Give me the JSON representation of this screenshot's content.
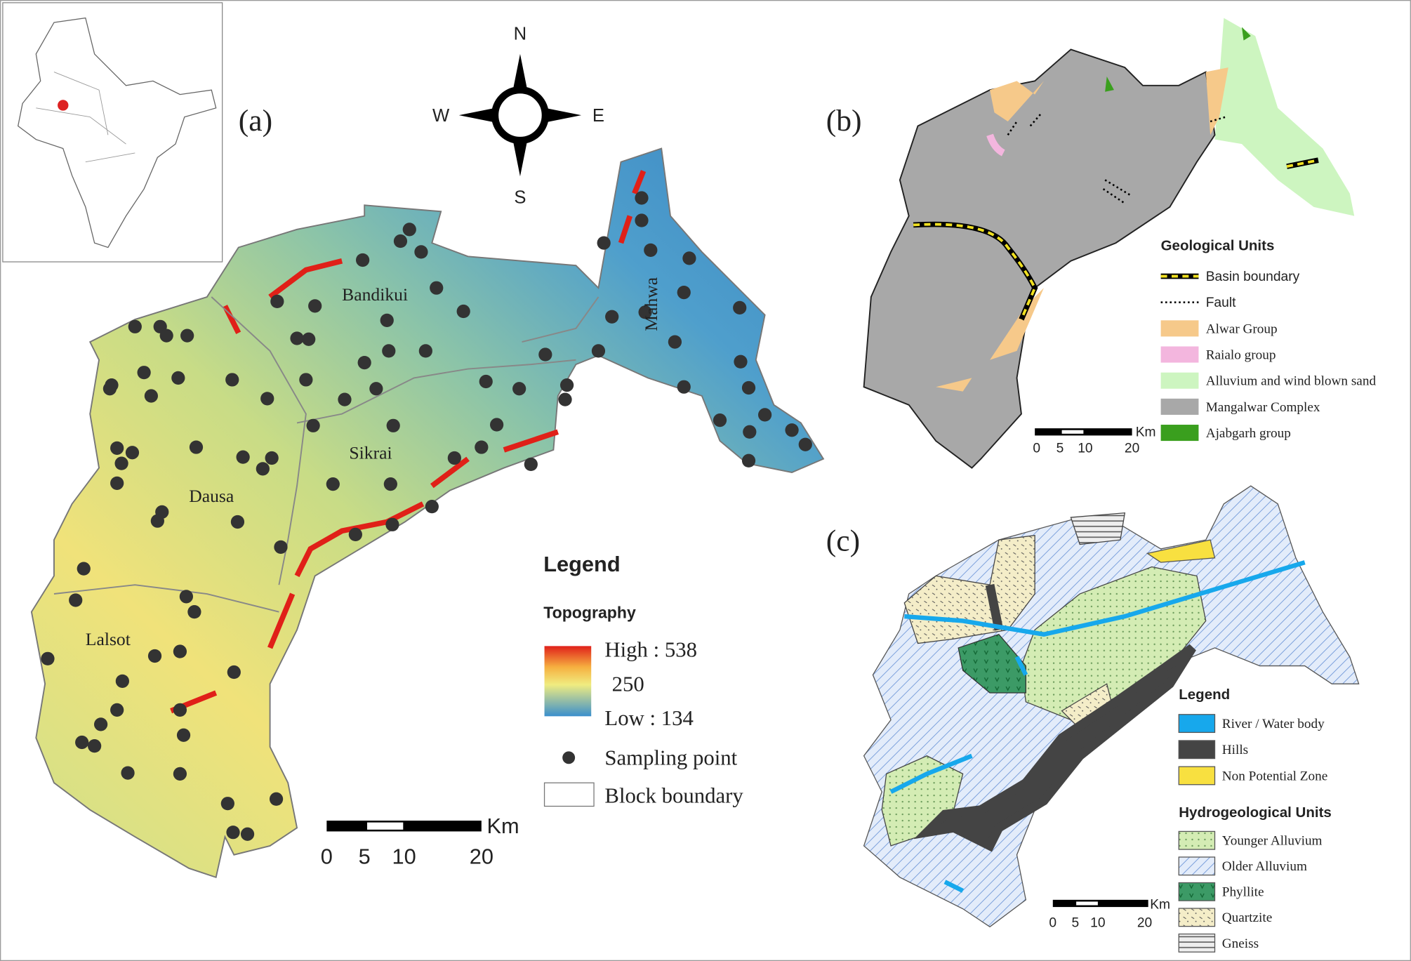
{
  "panel_a": {
    "label": "(a)",
    "compass": {
      "north": "N",
      "south": "S",
      "east": "E",
      "west": "W"
    },
    "blocks": [
      "Bandikui",
      "Mahwa",
      "Sikrai",
      "Dausa",
      "Lalsot"
    ],
    "legend": {
      "title": "Legend",
      "topography": "Topography",
      "high": "High : 538",
      "mid": "250",
      "low": "Low : 134",
      "sampling": "Sampling point",
      "boundary": "Block boundary"
    },
    "scale": {
      "unit": "Km",
      "ticks": [
        "0",
        "5",
        "10",
        "20"
      ]
    }
  },
  "panel_b": {
    "label": "(b)",
    "legend_title": "Geological Units",
    "items": [
      "Basin boundary",
      "Fault",
      "Alwar Group",
      "Raialo group",
      "Alluvium and wind blown sand",
      "Mangalwar Complex",
      "Ajabgarh group"
    ],
    "scale": {
      "unit": "Km",
      "ticks": [
        "0",
        "5",
        "10",
        "20"
      ]
    }
  },
  "panel_c": {
    "label": "(c)",
    "legend_title": "Legend",
    "items": [
      "River / Water body",
      "Hills",
      "Non Potential Zone"
    ],
    "units_title": "Hydrogeological Units",
    "units": [
      "Younger Alluvium",
      "Older Alluvium",
      "Phyllite",
      "Quartzite",
      "Gneiss"
    ],
    "scale": {
      "unit": "Km",
      "ticks": [
        "0",
        "5",
        "10",
        "20"
      ]
    }
  }
}
